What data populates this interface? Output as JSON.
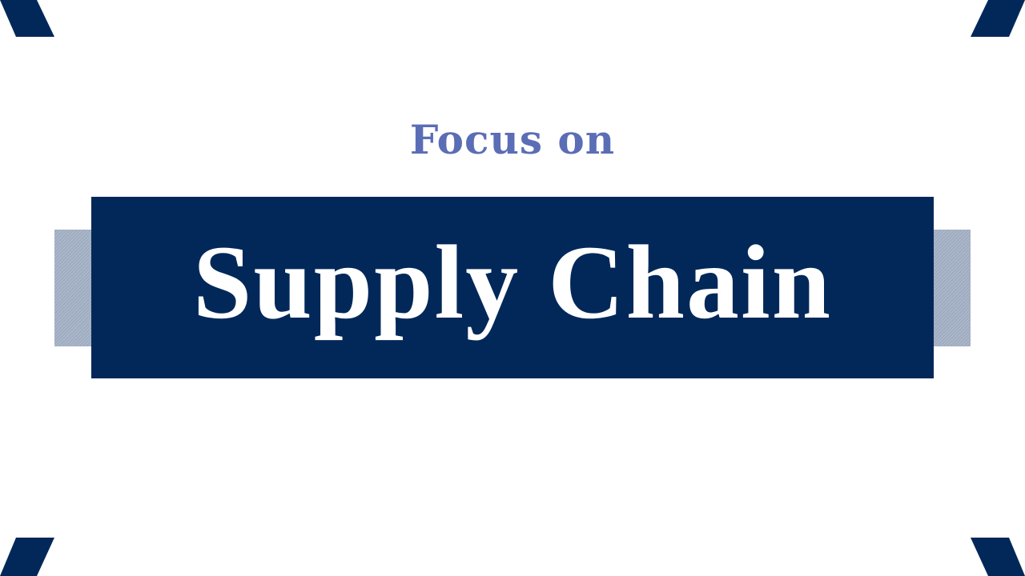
{
  "slide": {
    "subtitle": "Focus on",
    "title": "Supply Chain"
  },
  "colors": {
    "background": "#ffffff",
    "navy": "#022859",
    "subtitle_blue": "#5b6db5",
    "side_bar_gray": "#a3b0c5"
  }
}
